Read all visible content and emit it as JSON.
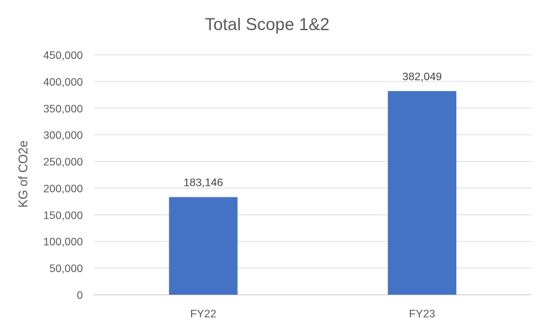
{
  "chart_data": {
    "type": "bar",
    "title": "Total Scope 1&2",
    "xlabel": "",
    "ylabel": "KG of CO2e",
    "categories": [
      "FY22",
      "FY23"
    ],
    "values": [
      183146,
      382049
    ],
    "data_labels": [
      "183,146",
      "382,049"
    ],
    "ylim": [
      0,
      450000
    ],
    "yticks": [
      "0",
      "50,000",
      "100,000",
      "150,000",
      "200,000",
      "250,000",
      "300,000",
      "350,000",
      "400,000",
      "450,000"
    ],
    "grid": true,
    "legend": "none",
    "colors": {
      "bar": "#4472C4"
    }
  }
}
